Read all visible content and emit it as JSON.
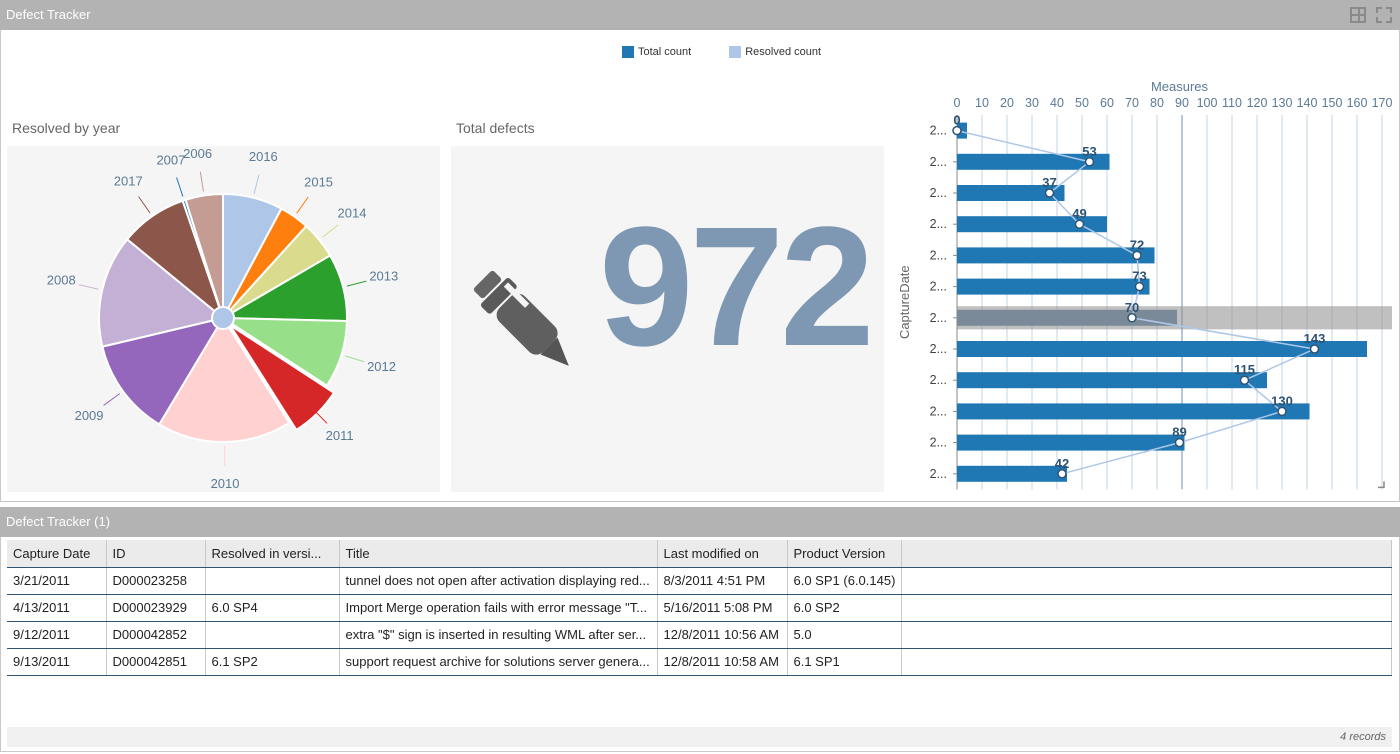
{
  "header": {
    "title": "Defect Tracker"
  },
  "legend": [
    {
      "label": "Total count",
      "color": "#1f77b4"
    },
    {
      "label": "Resolved count",
      "color": "#aec7e8"
    }
  ],
  "pie": {
    "title": "Resolved by year",
    "slices": [
      {
        "label": "2016",
        "value": 8,
        "color": "#aec7e8"
      },
      {
        "label": "2015",
        "value": 4,
        "color": "#ff7f0e"
      },
      {
        "label": "2014",
        "value": 5,
        "color": "#dbdb8d"
      },
      {
        "label": "2013",
        "value": 9,
        "color": "#2ca02c"
      },
      {
        "label": "2012",
        "value": 9,
        "color": "#98df8a"
      },
      {
        "label": "2011",
        "value": 7,
        "color": "#d62728"
      },
      {
        "label": "2010",
        "value": 18,
        "color": "#ffd1d1"
      },
      {
        "label": "2009",
        "value": 13,
        "color": "#9467bd"
      },
      {
        "label": "2008",
        "value": 15,
        "color": "#c5b0d5"
      },
      {
        "label": "2017",
        "value": 9,
        "color": "#8c564b"
      },
      {
        "label": "2007",
        "value": 0.4,
        "color": "#1f77b4"
      },
      {
        "label": "2006",
        "value": 5,
        "color": "#c49c94"
      }
    ]
  },
  "kpi": {
    "title": "Total defects",
    "value": "972",
    "icon": "pen-icon"
  },
  "chart_data": {
    "type": "bar",
    "title": "Measures",
    "ylabel": "CaptureDate",
    "xlim": [
      0,
      170
    ],
    "xticks": [
      0,
      10,
      20,
      30,
      40,
      50,
      60,
      70,
      80,
      90,
      100,
      110,
      120,
      130,
      140,
      150,
      160,
      170
    ],
    "categories": [
      "2...",
      "2...",
      "2...",
      "2...",
      "2...",
      "2...",
      "2...",
      "2...",
      "2...",
      "2...",
      "2...",
      "2..."
    ],
    "series": [
      {
        "name": "Total count",
        "values": [
          4,
          61,
          43,
          60,
          79,
          77,
          88,
          164,
          124,
          141,
          91,
          44
        ]
      },
      {
        "name": "Resolved count",
        "values": [
          0,
          53,
          37,
          49,
          72,
          73,
          70,
          143,
          115,
          130,
          89,
          42
        ]
      }
    ],
    "highlighted_index": 6
  },
  "table": {
    "title": "Defect Tracker (1)",
    "columns": [
      "Capture Date",
      "ID",
      "Resolved in versi...",
      "Title",
      "Last modified on",
      "Product Version"
    ],
    "rows": [
      [
        "3/21/2011",
        "D000023258",
        "",
        "tunnel does not open after activation displaying red...",
        "8/3/2011 4:51 PM",
        "6.0 SP1 (6.0.145)"
      ],
      [
        "4/13/2011",
        "D000023929",
        "6.0 SP4",
        "Import Merge operation fails with error message \"T...",
        "5/16/2011 5:08 PM",
        "6.0 SP2"
      ],
      [
        "9/12/2011",
        "D000042852",
        "",
        "extra \"$\" sign is inserted in resulting WML after ser...",
        "12/8/2011 10:56 AM",
        "5.0"
      ],
      [
        "9/13/2011",
        "D000042851",
        "6.1 SP2",
        "support request archive for solutions server genera...",
        "12/8/2011 10:58 AM",
        "6.1 SP1"
      ]
    ],
    "footer": "4 records"
  }
}
